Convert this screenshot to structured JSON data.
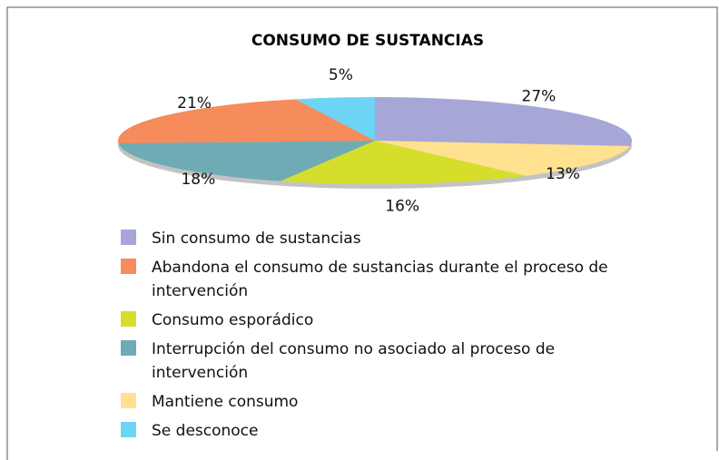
{
  "chart_data": {
    "type": "pie",
    "title": "CONSUMO DE SUSTANCIAS",
    "categories": [
      "Sin consumo de sustancias",
      "Mantiene consumo",
      "Consumo esporádico",
      "Interrupción del consumo no asociado al proceso de intervención",
      "Abandona el consumo de sustancias durante el proceso de intervención",
      "Se desconoce"
    ],
    "values": [
      27,
      13,
      16,
      18,
      21,
      5
    ],
    "value_labels": [
      "27%",
      "13%",
      "16%",
      "18%",
      "21%",
      "5%"
    ],
    "colors": [
      "#a6a7d6",
      "#ffe18f",
      "#d5df2b",
      "#6fabb5",
      "#f68b5b",
      "#6ed4f6"
    ]
  }
}
